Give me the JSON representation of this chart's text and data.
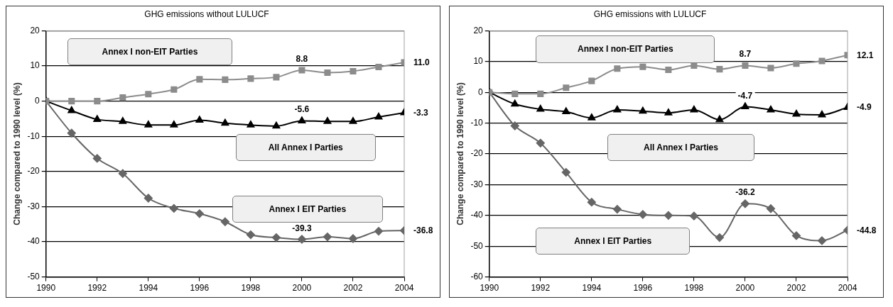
{
  "chart_data": [
    {
      "type": "line",
      "title": "GHG emissions without LULUCF",
      "ylabel": "Change compared to 1990 level (%)",
      "x": [
        1990,
        1991,
        1992,
        1993,
        1994,
        1995,
        1996,
        1997,
        1998,
        1999,
        2000,
        2001,
        2002,
        2003,
        2004
      ],
      "xlim": [
        1990,
        2004
      ],
      "xticks": [
        1990,
        1992,
        1994,
        1996,
        1998,
        2000,
        2002,
        2004
      ],
      "ylim": [
        -50,
        20
      ],
      "yticks": [
        -50,
        -40,
        -30,
        -20,
        -10,
        0,
        10,
        20
      ],
      "grid": "y",
      "legend": false,
      "series": [
        {
          "name": "Annex I non-EIT Parties",
          "color": "#8c8c8c",
          "marker": "square",
          "values": [
            0,
            0,
            0,
            1,
            2,
            3.3,
            6.2,
            6.1,
            6.4,
            6.8,
            8.8,
            8.1,
            8.5,
            9.7,
            11.0
          ],
          "value_labels": [
            null,
            null,
            null,
            null,
            null,
            null,
            null,
            null,
            null,
            null,
            "8.8",
            null,
            null,
            null,
            "11.0"
          ]
        },
        {
          "name": "All Annex I Parties",
          "color": "#000000",
          "marker": "triangle",
          "values": [
            0,
            -2.7,
            -5.2,
            -5.8,
            -6.8,
            -6.8,
            -5.4,
            -6.3,
            -6.8,
            -7.1,
            -5.6,
            -5.8,
            -5.8,
            -4.5,
            -3.3
          ],
          "value_labels": [
            null,
            null,
            null,
            null,
            null,
            null,
            null,
            null,
            null,
            null,
            "-5.6",
            null,
            null,
            null,
            "-3.3"
          ]
        },
        {
          "name": "Annex I EIT Parties",
          "color": "#666666",
          "marker": "diamond",
          "values": [
            0,
            -9.1,
            -16.3,
            -20.6,
            -27.6,
            -30.5,
            -32.0,
            -34.3,
            -38.0,
            -38.8,
            -39.3,
            -38.6,
            -39.1,
            -37.0,
            -36.8
          ],
          "value_labels": [
            null,
            null,
            null,
            null,
            null,
            null,
            null,
            null,
            null,
            null,
            "-39.3",
            null,
            null,
            null,
            "-36.8"
          ]
        }
      ]
    },
    {
      "type": "line",
      "title": "GHG emissions with LULUCF",
      "ylabel": "Change compared to 1990 level (%)",
      "x": [
        1990,
        1991,
        1992,
        1993,
        1994,
        1995,
        1996,
        1997,
        1998,
        1999,
        2000,
        2001,
        2002,
        2003,
        2004
      ],
      "xlim": [
        1990,
        2004
      ],
      "xticks": [
        1990,
        1992,
        1994,
        1996,
        1998,
        2000,
        2002,
        2004
      ],
      "ylim": [
        -60,
        20
      ],
      "yticks": [
        -60,
        -50,
        -40,
        -30,
        -20,
        -10,
        0,
        10,
        20
      ],
      "grid": "y",
      "legend": false,
      "series": [
        {
          "name": "Annex I non-EIT Parties",
          "color": "#8c8c8c",
          "marker": "square",
          "values": [
            0,
            -0.5,
            -0.5,
            1.5,
            3.7,
            7.7,
            8.3,
            7.3,
            8.7,
            7.5,
            8.7,
            7.9,
            9.3,
            10.2,
            12.1
          ],
          "value_labels": [
            null,
            null,
            null,
            null,
            null,
            null,
            null,
            null,
            null,
            null,
            "8.7",
            null,
            null,
            null,
            "12.1"
          ]
        },
        {
          "name": "All Annex I Parties",
          "color": "#000000",
          "marker": "triangle",
          "values": [
            0,
            -3.8,
            -5.5,
            -6.3,
            -8.3,
            -5.7,
            -6.1,
            -6.7,
            -5.7,
            -8.9,
            -4.7,
            -5.7,
            -7.1,
            -7.3,
            -4.9
          ],
          "value_labels": [
            null,
            null,
            null,
            null,
            null,
            null,
            null,
            null,
            null,
            null,
            "-4.7",
            null,
            null,
            null,
            "-4.9"
          ]
        },
        {
          "name": "Annex I EIT Parties",
          "color": "#666666",
          "marker": "diamond",
          "values": [
            0,
            -10.9,
            -16.5,
            -26.0,
            -35.7,
            -38.0,
            -39.7,
            -40.0,
            -40.2,
            -47.2,
            -36.2,
            -37.8,
            -46.6,
            -48.2,
            -44.8
          ],
          "value_labels": [
            null,
            null,
            null,
            null,
            null,
            null,
            null,
            null,
            null,
            null,
            "-36.2",
            null,
            null,
            null,
            "-44.8"
          ]
        }
      ]
    }
  ]
}
